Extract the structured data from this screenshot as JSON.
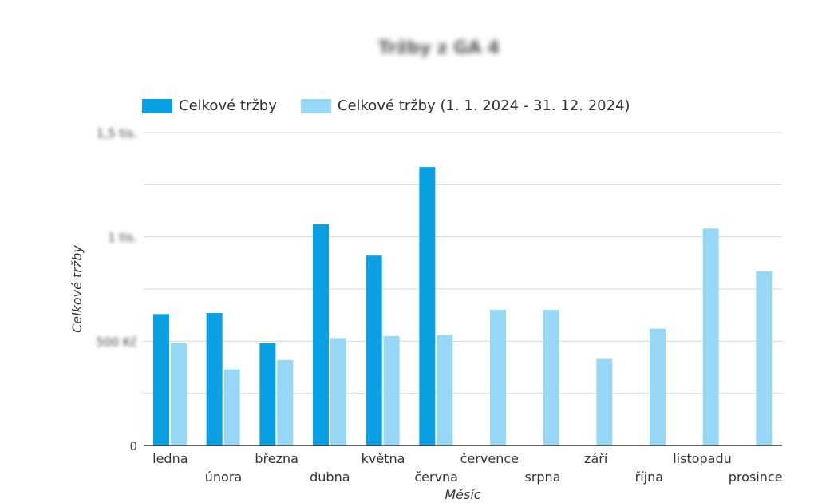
{
  "chart_data": {
    "type": "bar",
    "title": "Tržby z GA 4",
    "xlabel": "Měsíc",
    "ylabel": "Celkové tržby",
    "categories": [
      "ledna",
      "února",
      "března",
      "dubna",
      "května",
      "června",
      "července",
      "srpna",
      "září",
      "října",
      "listopadu",
      "prosince"
    ],
    "series": [
      {
        "name": "Celkové tržby",
        "color": "#0aa0e4",
        "values": [
          630,
          635,
          490,
          1060,
          910,
          1335,
          null,
          null,
          null,
          null,
          null,
          null
        ]
      },
      {
        "name": "Celkové tržby (1. 1. 2024 - 31. 12. 2024)",
        "color": "#96d8f6",
        "values": [
          490,
          365,
          410,
          515,
          525,
          530,
          650,
          650,
          415,
          560,
          1040,
          835
        ]
      }
    ],
    "yticks": [
      0,
      500,
      1000,
      1500
    ],
    "ytick_labels": [
      "0",
      "500 Kč",
      "1 tis.",
      "1,5 tis."
    ],
    "ylim": [
      0,
      1500
    ],
    "grid": true,
    "legend": "top-left"
  }
}
